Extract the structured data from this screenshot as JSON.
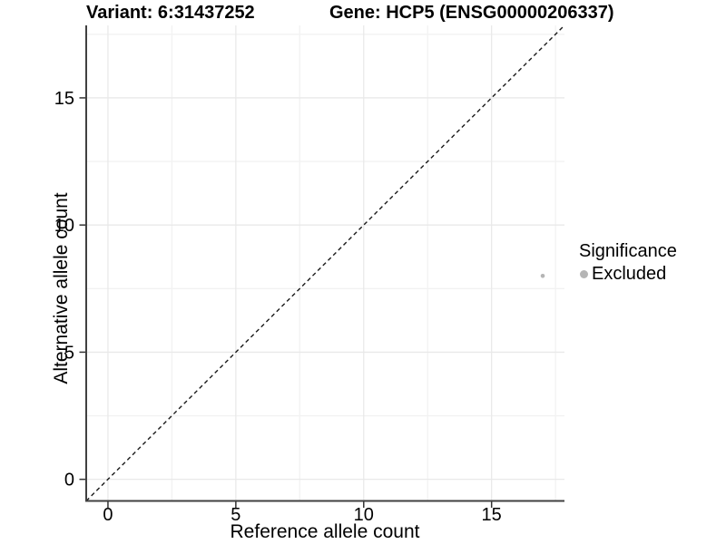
{
  "header": {
    "variant_label": "Variant: 6:31437252",
    "gene_label": "Gene: HCP5 (ENSG00000206337)"
  },
  "axes": {
    "x_label": "Reference allele count",
    "y_label": "Alternative allele count"
  },
  "legend": {
    "title": "Significance",
    "items": [
      {
        "label": "Excluded",
        "color": "#b5b5b5"
      }
    ]
  },
  "colors": {
    "background": "#ffffff",
    "point": "#b5b5b5",
    "axis_line": "#404040",
    "tick_mark": "#333333",
    "grid_major": "#e9e9e9",
    "grid_minor": "#f2f2f2",
    "identity_line": "#1a1a1a",
    "text": "#000000"
  },
  "chart_data": {
    "type": "scatter",
    "title": "Variant: 6:31437252 | Gene: HCP5 (ENSG00000206337)",
    "xlabel": "Reference allele count",
    "ylabel": "Alternative allele count",
    "xlim": [
      -0.85,
      17.85
    ],
    "ylim": [
      -0.85,
      17.85
    ],
    "x_ticks": [
      0,
      5,
      10,
      15
    ],
    "y_ticks": [
      0,
      5,
      10,
      15
    ],
    "minor_ticks": [
      2.5,
      7.5,
      12.5,
      17.5
    ],
    "grid": true,
    "legend_position": "right",
    "series": [
      {
        "name": "Excluded",
        "color": "#b5b5b5",
        "point_radius": 2.3,
        "points": [
          {
            "x": 17,
            "y": 8
          }
        ]
      }
    ],
    "reference_line": {
      "equation": "y = x",
      "style": "dashed",
      "color": "#1a1a1a"
    }
  }
}
